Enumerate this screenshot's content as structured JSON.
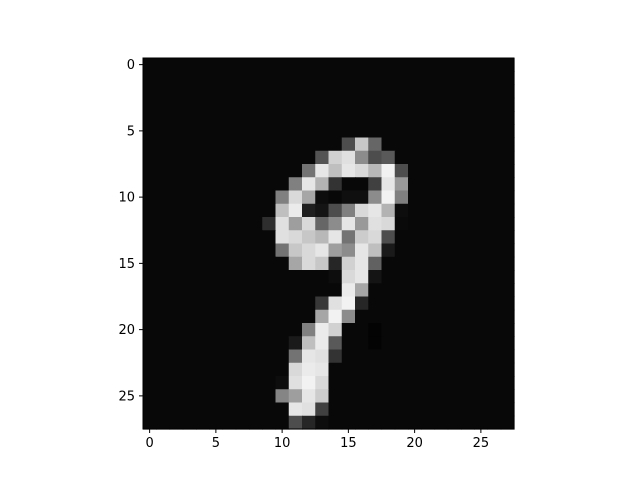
{
  "chart_data": {
    "type": "heatmap",
    "colormap": "gray",
    "value_range": [
      0,
      1
    ],
    "rows": 28,
    "cols": 28,
    "x_ticks": [
      0,
      5,
      10,
      15,
      20,
      25
    ],
    "y_ticks": [
      0,
      5,
      10,
      15,
      20,
      25
    ],
    "xlim": [
      -0.5,
      27.5
    ],
    "ylim": [
      27.5,
      -0.5
    ],
    "grid": false,
    "title": "",
    "xlabel": "",
    "ylabel": "",
    "background_value": 0.03,
    "cells": [
      [
        6,
        15,
        0.3
      ],
      [
        6,
        16,
        0.78
      ],
      [
        6,
        17,
        0.4
      ],
      [
        7,
        13,
        0.33
      ],
      [
        7,
        14,
        0.82
      ],
      [
        7,
        15,
        0.88
      ],
      [
        7,
        16,
        0.55
      ],
      [
        7,
        17,
        0.3
      ],
      [
        7,
        18,
        0.35
      ],
      [
        8,
        12,
        0.45
      ],
      [
        8,
        13,
        0.9
      ],
      [
        8,
        14,
        0.75
      ],
      [
        8,
        15,
        0.9
      ],
      [
        8,
        16,
        0.85
      ],
      [
        8,
        17,
        0.72
      ],
      [
        8,
        18,
        0.95
      ],
      [
        8,
        19,
        0.3
      ],
      [
        9,
        11,
        0.5
      ],
      [
        9,
        12,
        0.9
      ],
      [
        9,
        13,
        0.7
      ],
      [
        9,
        14,
        0.2
      ],
      [
        9,
        17,
        0.25
      ],
      [
        9,
        18,
        0.9
      ],
      [
        9,
        19,
        0.6
      ],
      [
        10,
        10,
        0.5
      ],
      [
        10,
        11,
        0.85
      ],
      [
        10,
        12,
        0.65
      ],
      [
        10,
        13,
        0.05
      ],
      [
        10,
        15,
        0.06
      ],
      [
        10,
        16,
        0.06
      ],
      [
        10,
        17,
        0.55
      ],
      [
        10,
        18,
        0.95
      ],
      [
        10,
        19,
        0.5
      ],
      [
        11,
        10,
        0.75
      ],
      [
        11,
        11,
        0.92
      ],
      [
        11,
        12,
        0.12
      ],
      [
        11,
        13,
        0.08
      ],
      [
        11,
        14,
        0.3
      ],
      [
        11,
        15,
        0.5
      ],
      [
        11,
        16,
        0.85
      ],
      [
        11,
        17,
        0.9
      ],
      [
        11,
        18,
        0.7
      ],
      [
        11,
        19,
        0.05
      ],
      [
        12,
        9,
        0.18
      ],
      [
        12,
        10,
        0.88
      ],
      [
        12,
        11,
        0.62
      ],
      [
        12,
        12,
        0.85
      ],
      [
        12,
        13,
        0.4
      ],
      [
        12,
        14,
        0.55
      ],
      [
        12,
        15,
        0.9
      ],
      [
        12,
        16,
        0.6
      ],
      [
        12,
        17,
        0.88
      ],
      [
        12,
        18,
        0.85
      ],
      [
        12,
        19,
        0.04
      ],
      [
        13,
        10,
        0.88
      ],
      [
        13,
        11,
        0.85
      ],
      [
        13,
        12,
        0.78
      ],
      [
        13,
        13,
        0.72
      ],
      [
        13,
        14,
        0.9
      ],
      [
        13,
        15,
        0.45
      ],
      [
        13,
        16,
        0.8
      ],
      [
        13,
        17,
        0.85
      ],
      [
        13,
        18,
        0.3
      ],
      [
        14,
        10,
        0.45
      ],
      [
        14,
        11,
        0.78
      ],
      [
        14,
        12,
        0.85
      ],
      [
        14,
        13,
        0.9
      ],
      [
        14,
        14,
        0.62
      ],
      [
        14,
        15,
        0.55
      ],
      [
        14,
        16,
        0.9
      ],
      [
        14,
        17,
        0.75
      ],
      [
        14,
        18,
        0.1
      ],
      [
        15,
        11,
        0.65
      ],
      [
        15,
        12,
        0.85
      ],
      [
        15,
        13,
        0.78
      ],
      [
        15,
        14,
        0.15
      ],
      [
        15,
        15,
        0.82
      ],
      [
        15,
        16,
        0.9
      ],
      [
        15,
        17,
        0.38
      ],
      [
        16,
        14,
        0.05
      ],
      [
        16,
        15,
        0.85
      ],
      [
        16,
        16,
        0.9
      ],
      [
        16,
        17,
        0.08
      ],
      [
        17,
        15,
        0.92
      ],
      [
        17,
        16,
        0.65
      ],
      [
        18,
        13,
        0.22
      ],
      [
        18,
        14,
        0.88
      ],
      [
        18,
        15,
        0.95
      ],
      [
        18,
        16,
        0.15
      ],
      [
        19,
        13,
        0.65
      ],
      [
        19,
        14,
        0.95
      ],
      [
        19,
        15,
        0.55
      ],
      [
        20,
        12,
        0.5
      ],
      [
        20,
        13,
        0.92
      ],
      [
        20,
        14,
        0.82
      ],
      [
        20,
        17,
        0.01
      ],
      [
        21,
        11,
        0.1
      ],
      [
        21,
        12,
        0.75
      ],
      [
        21,
        13,
        0.92
      ],
      [
        21,
        14,
        0.35
      ],
      [
        21,
        17,
        0.01
      ],
      [
        22,
        11,
        0.45
      ],
      [
        22,
        12,
        0.9
      ],
      [
        22,
        13,
        0.88
      ],
      [
        22,
        14,
        0.2
      ],
      [
        23,
        11,
        0.85
      ],
      [
        23,
        12,
        0.92
      ],
      [
        23,
        13,
        0.9
      ],
      [
        24,
        10,
        0.05
      ],
      [
        24,
        11,
        0.88
      ],
      [
        24,
        12,
        0.95
      ],
      [
        24,
        13,
        0.85
      ],
      [
        25,
        10,
        0.52
      ],
      [
        25,
        11,
        0.62
      ],
      [
        25,
        12,
        0.9
      ],
      [
        25,
        13,
        0.8
      ],
      [
        26,
        11,
        0.9
      ],
      [
        26,
        12,
        0.88
      ],
      [
        26,
        13,
        0.25
      ],
      [
        27,
        11,
        0.3
      ],
      [
        27,
        12,
        0.15
      ],
      [
        27,
        13,
        0.05
      ]
    ]
  }
}
